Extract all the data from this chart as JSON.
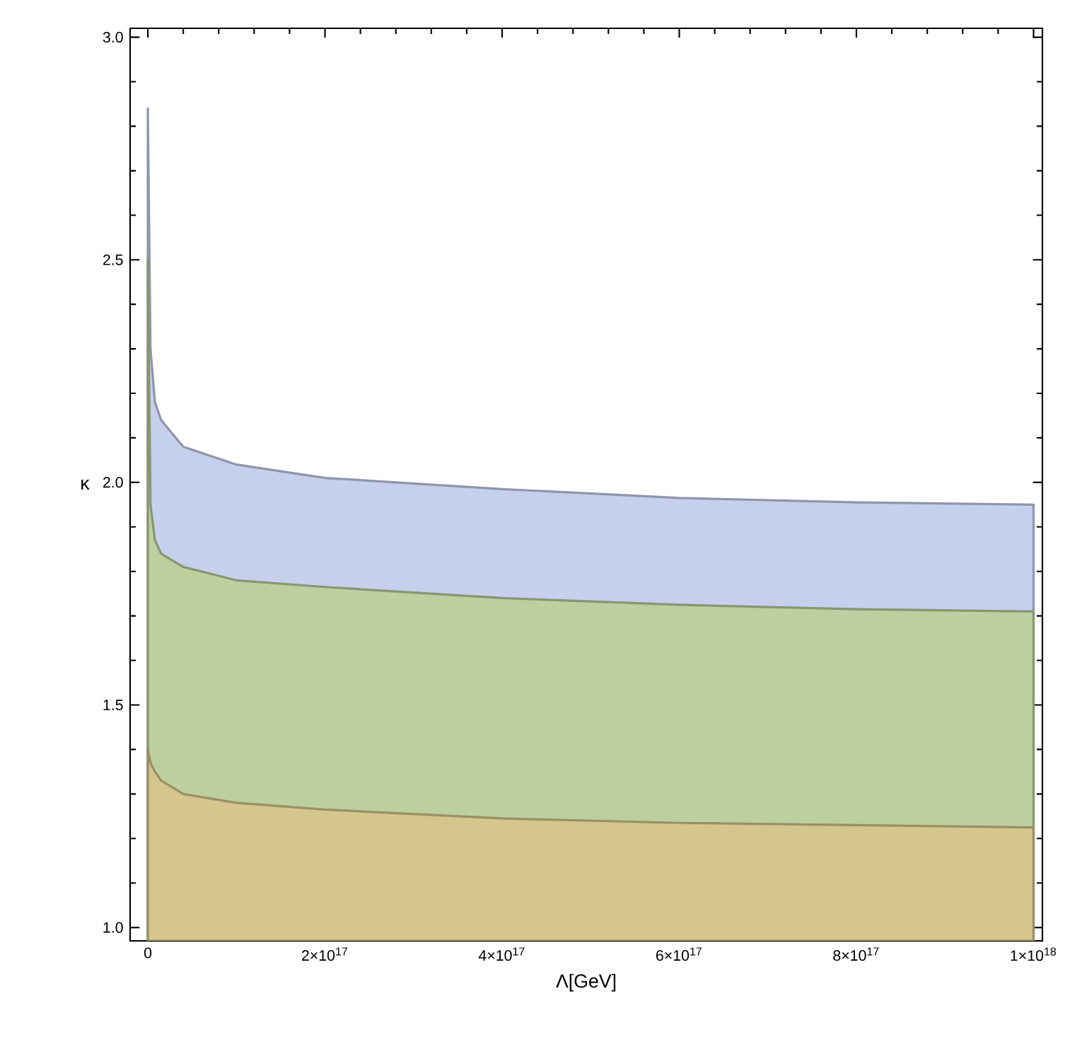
{
  "chart_data": {
    "type": "area",
    "xlabel": "Λ[GeV]",
    "ylabel": "κ",
    "x": [
      0,
      3000000000000000.0,
      8000000000000000.0,
      1.5e+16,
      4e+16,
      1e+17,
      2e+17,
      4e+17,
      6e+17,
      8e+17,
      1e+18
    ],
    "series": [
      {
        "color": "#c6cfec",
        "values": [
          2.84,
          2.3,
          2.18,
          2.14,
          2.08,
          2.04,
          2.01,
          1.985,
          1.965,
          1.955,
          1.95
        ]
      },
      {
        "color": "#bccf9e",
        "values": [
          2.5,
          1.95,
          1.87,
          1.84,
          1.81,
          1.78,
          1.765,
          1.74,
          1.725,
          1.715,
          1.71
        ]
      },
      {
        "color": "#d4c68c",
        "values": [
          1.4,
          1.37,
          1.35,
          1.33,
          1.3,
          1.28,
          1.265,
          1.245,
          1.235,
          1.23,
          1.225
        ]
      }
    ],
    "xlim": [
      -2e+16,
      1.01e+18
    ],
    "ylim": [
      0.97,
      3.02
    ],
    "xticks": [
      0,
      {
        "value": 2e+17,
        "label": "2×10$^{17}$"
      },
      {
        "value": 4e+17,
        "label": "4×10$^{17}$"
      },
      {
        "value": 6e+17,
        "label": "6×10$^{17}$"
      },
      {
        "value": 8e+17,
        "label": "8×10$^{17}$"
      },
      {
        "value": 1e+18,
        "label": "1×10$^{18}$"
      }
    ],
    "yticks": [
      {
        "value": 1,
        "label": "1.0"
      },
      {
        "value": 1.5,
        "label": "1.5"
      },
      {
        "value": 2,
        "label": "2.0"
      },
      {
        "value": 2.5,
        "label": "2.5"
      },
      {
        "value": 3,
        "label": "3.0"
      }
    ],
    "grid": false
  }
}
